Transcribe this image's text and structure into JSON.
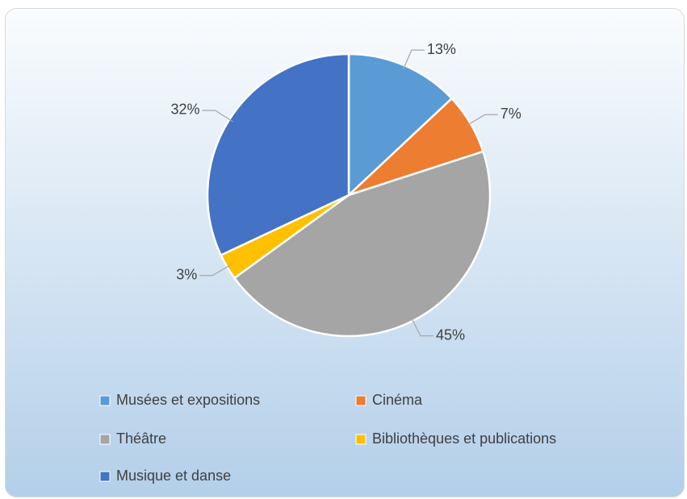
{
  "chart_data": {
    "type": "pie",
    "categories": [
      "Musées et expositions",
      "Cinéma",
      "Théâtre",
      "Bibliothèques et publications",
      "Musique et danse"
    ],
    "values": [
      13,
      7,
      45,
      3,
      32
    ],
    "value_labels": [
      "13%",
      "7%",
      "45%",
      "3%",
      "32%"
    ],
    "colors": [
      "#5b9bd5",
      "#ed7d31",
      "#a5a5a5",
      "#ffc000",
      "#4472c4"
    ],
    "legend": "bottom"
  }
}
